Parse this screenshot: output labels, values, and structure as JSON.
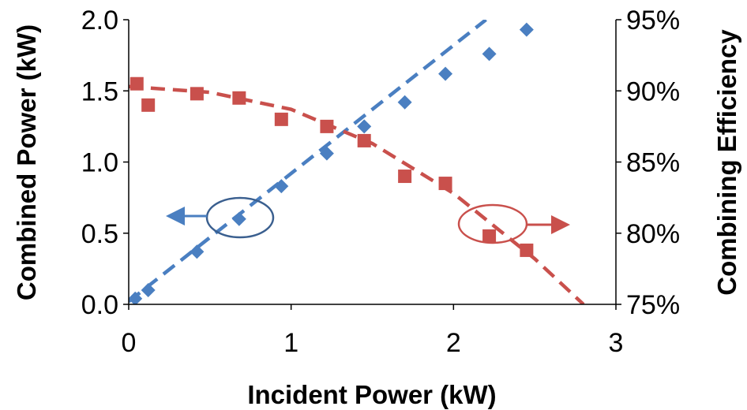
{
  "chart_data": {
    "type": "scatter",
    "xlabel": "Incident Power (kW)",
    "ylabel": "Combined Power (kW)",
    "y2label": "Combining Efficiency",
    "xlim": [
      0,
      3
    ],
    "ylim": [
      0,
      2.0
    ],
    "y2lim": [
      75,
      95
    ],
    "xticks": [
      "0",
      "1",
      "2",
      "3"
    ],
    "yticks": [
      "0.0",
      "0.5",
      "1.0",
      "1.5",
      "2.0"
    ],
    "y2ticks": [
      "75%",
      "80%",
      "85%",
      "90%",
      "95%"
    ],
    "grid": false,
    "series": [
      {
        "axis": "left",
        "marker": "diamond",
        "color": "#4a7fc1",
        "x": [
          0.04,
          0.12,
          0.42,
          0.68,
          0.94,
          1.22,
          1.45,
          1.7,
          1.95,
          2.22,
          2.45
        ],
        "y": [
          0.04,
          0.1,
          0.37,
          0.6,
          0.83,
          1.06,
          1.25,
          1.42,
          1.62,
          1.76,
          1.93
        ],
        "fit": {
          "color": "#4a7fc1",
          "x": [
            0,
            2.2
          ],
          "y": [
            0.02,
            2.0
          ]
        }
      },
      {
        "axis": "right",
        "marker": "square",
        "color": "#c9504c",
        "x": [
          0.05,
          0.12,
          0.42,
          0.68,
          0.94,
          1.22,
          1.45,
          1.7,
          1.95,
          2.22,
          2.45
        ],
        "y": [
          90.5,
          89.0,
          89.8,
          89.5,
          88.0,
          87.5,
          86.5,
          84.0,
          83.5,
          79.8,
          78.8
        ],
        "fit": {
          "color": "#c9504c",
          "x": [
            0,
            0.5,
            1.0,
            1.5,
            2.0,
            2.5,
            2.8
          ],
          "y": [
            90.3,
            89.9,
            88.7,
            86.3,
            82.8,
            78.2,
            75.0
          ]
        }
      }
    ],
    "annotations": [
      {
        "type": "ellipse-arrow",
        "target_axis": "left",
        "color": "#3a5f8f",
        "arrow_color": "#4a7fc1",
        "direction": "left"
      },
      {
        "type": "ellipse-arrow",
        "target_axis": "right",
        "color": "#c9504c",
        "arrow_color": "#c9504c",
        "direction": "right"
      }
    ]
  }
}
